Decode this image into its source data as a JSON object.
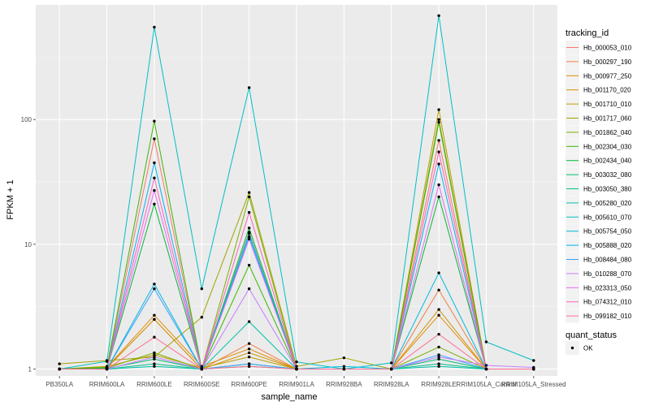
{
  "chart_data": {
    "type": "line",
    "xlabel": "sample_name",
    "ylabel": "FPKM + 1",
    "y_scale": "log10",
    "ylim": [
      0.88,
      830
    ],
    "y_ticks": [
      1,
      10,
      100
    ],
    "y_tick_labels": [
      "1",
      "10",
      "100"
    ],
    "grid": true,
    "legend_position": "right",
    "categories": [
      "PB350LA",
      "RRIM600LA",
      "RRIM600LE",
      "RRIM600SE",
      "RRIM600PE",
      "RRIM901LA",
      "RRIM928BA",
      "RRIM928LA",
      "RRIM928LE",
      "RRIM105LA_Control",
      "RRIM105LA_Stressed"
    ],
    "legend": {
      "title": "tracking_id"
    },
    "shape_legend": {
      "title": "quant_status",
      "entries": [
        "OK"
      ],
      "color": "#000000"
    },
    "series": [
      {
        "name": "Hb_000053_010",
        "color": "#F8766D",
        "values": [
          1.0,
          1.01,
          70,
          1.0,
          12.5,
          1.0,
          1.0,
          1.0,
          68,
          1.0,
          1.0
        ]
      },
      {
        "name": "Hb_000297_190",
        "color": "#EF7F46",
        "values": [
          1.0,
          1.02,
          2.5,
          1.0,
          1.6,
          1.0,
          1.0,
          1.0,
          4.3,
          1.0,
          1.0
        ]
      },
      {
        "name": "Hb_000977_250",
        "color": "#E28A00",
        "values": [
          1.0,
          1.03,
          2.7,
          1.05,
          1.45,
          1.0,
          1.0,
          1.0,
          2.7,
          1.0,
          1.0
        ]
      },
      {
        "name": "Hb_001170_020",
        "color": "#D19300",
        "values": [
          1.0,
          1.02,
          2.5,
          1.0,
          1.35,
          1.0,
          1.0,
          1.0,
          3.0,
          1.0,
          1.0
        ]
      },
      {
        "name": "Hb_001710_010",
        "color": "#BB9D00",
        "values": [
          1.0,
          1.05,
          1.3,
          1.02,
          1.25,
          1.0,
          1.0,
          1.0,
          120,
          1.0,
          1.0
        ]
      },
      {
        "name": "Hb_001717_060",
        "color": "#A0A400",
        "values": [
          1.1,
          1.17,
          1.25,
          2.6,
          26,
          1.05,
          1.23,
          1.0,
          100,
          1.0,
          1.0
        ]
      },
      {
        "name": "Hb_001862_040",
        "color": "#7CAE00",
        "values": [
          1.0,
          1.02,
          1.35,
          1.0,
          24,
          1.0,
          1.0,
          1.0,
          1.5,
          1.0,
          1.0
        ]
      },
      {
        "name": "Hb_002304_030",
        "color": "#39B600",
        "values": [
          1.0,
          1.03,
          97,
          1.0,
          6.8,
          1.0,
          1.0,
          1.0,
          95,
          1.0,
          1.0
        ]
      },
      {
        "name": "Hb_002434_040",
        "color": "#00BA38",
        "values": [
          1.0,
          1.0,
          21,
          1.0,
          13.5,
          1.0,
          1.0,
          1.0,
          24,
          1.0,
          1.0
        ]
      },
      {
        "name": "Hb_003032_080",
        "color": "#00BE6C",
        "values": [
          1.0,
          1.01,
          1.2,
          1.0,
          1.1,
          1.0,
          1.0,
          1.0,
          1.2,
          1.0,
          1.0
        ]
      },
      {
        "name": "Hb_003050_380",
        "color": "#00C08B",
        "values": [
          1.0,
          1.0,
          1.1,
          1.0,
          1.05,
          1.0,
          1.0,
          1.0,
          1.1,
          1.0,
          1.0
        ]
      },
      {
        "name": "Hb_005280_020",
        "color": "#00C1A7",
        "values": [
          1.0,
          1.0,
          1.05,
          1.0,
          2.4,
          1.0,
          1.0,
          1.0,
          1.05,
          1.0,
          1.0
        ]
      },
      {
        "name": "Hb_005610_070",
        "color": "#00BFC4",
        "values": [
          1.0,
          1.15,
          550,
          4.4,
          180,
          1.14,
          1.0,
          1.12,
          680,
          1.65,
          1.17
        ]
      },
      {
        "name": "Hb_005754_050",
        "color": "#00BBDC",
        "values": [
          1.0,
          1.0,
          4.8,
          1.0,
          12.2,
          1.0,
          1.05,
          1.0,
          5.9,
          1.0,
          1.0
        ]
      },
      {
        "name": "Hb_005888_020",
        "color": "#00B4EF",
        "values": [
          1.0,
          1.0,
          45,
          1.0,
          11.5,
          1.0,
          1.0,
          1.0,
          44,
          1.0,
          1.0
        ]
      },
      {
        "name": "Hb_008484_080",
        "color": "#35A2FF",
        "values": [
          1.0,
          1.0,
          4.4,
          1.0,
          1.1,
          1.0,
          1.0,
          1.0,
          1.3,
          1.0,
          1.0
        ]
      },
      {
        "name": "Hb_010288_070",
        "color": "#C77CFF",
        "values": [
          1.0,
          1.0,
          1.25,
          1.0,
          4.4,
          1.0,
          1.0,
          1.0,
          1.25,
          1.07,
          1.03
        ]
      },
      {
        "name": "Hb_023313_050",
        "color": "#E76BF3",
        "values": [
          1.0,
          1.0,
          27,
          1.0,
          11,
          1.0,
          1.0,
          1.0,
          30,
          1.0,
          1.0
        ]
      },
      {
        "name": "Hb_074312_010",
        "color": "#FF62BC",
        "values": [
          1.0,
          1.0,
          34,
          1.0,
          18,
          1.0,
          1.0,
          1.0,
          55,
          1.0,
          1.0
        ]
      },
      {
        "name": "Hb_099182_010",
        "color": "#FF6C91",
        "values": [
          1.0,
          1.0,
          1.8,
          1.0,
          1.05,
          1.0,
          1.0,
          1.0,
          1.9,
          1.0,
          1.0
        ]
      }
    ]
  }
}
